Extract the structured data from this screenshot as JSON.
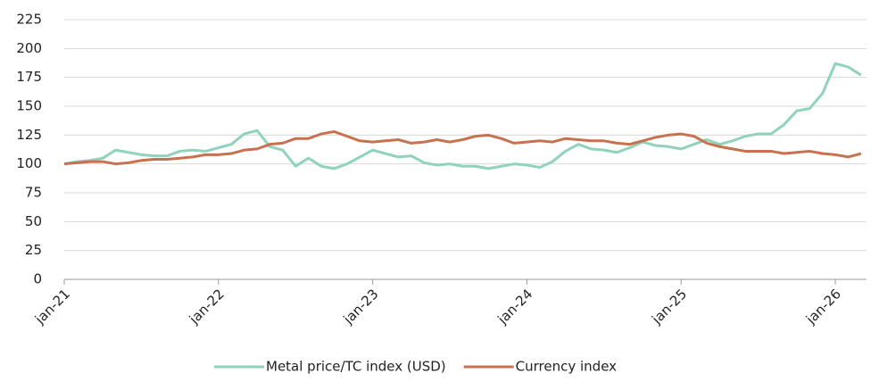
{
  "chart_data": {
    "type": "line",
    "categories": [
      "jan-21",
      null,
      null,
      null,
      null,
      null,
      null,
      null,
      null,
      null,
      null,
      null,
      "jan-22",
      null,
      null,
      null,
      null,
      null,
      null,
      null,
      null,
      null,
      null,
      null,
      "jan-23",
      null,
      null,
      null,
      null,
      null,
      null,
      null,
      null,
      null,
      null,
      null,
      "jan-24",
      null,
      null,
      null,
      null,
      null,
      null,
      null,
      null,
      null,
      null,
      null,
      "jan-25",
      null,
      null,
      null,
      null,
      null,
      null,
      null,
      null,
      null,
      null,
      null,
      "jan-26",
      null,
      null
    ],
    "series": [
      {
        "name": "Metal price/TC index (USD)",
        "color": "#8fd3bb",
        "values": [
          100,
          102,
          103,
          105,
          112,
          110,
          108,
          107,
          107,
          111,
          112,
          111,
          114,
          117,
          126,
          129,
          115,
          112,
          98,
          105,
          98,
          96,
          100,
          106,
          112,
          109,
          106,
          107,
          101,
          99,
          100,
          98,
          98,
          96,
          98,
          100,
          99,
          97,
          102,
          111,
          117,
          113,
          112,
          110,
          114,
          119,
          116,
          115,
          113,
          117,
          121,
          117,
          120,
          124,
          126,
          126,
          134,
          146,
          148,
          161,
          187,
          184,
          177
        ]
      },
      {
        "name": "Currency index",
        "color": "#c8714e",
        "values": [
          100,
          101,
          102,
          102,
          100,
          101,
          103,
          104,
          104,
          105,
          106,
          108,
          108,
          109,
          112,
          113,
          117,
          118,
          122,
          122,
          126,
          128,
          124,
          120,
          119,
          120,
          121,
          118,
          119,
          121,
          119,
          121,
          124,
          125,
          122,
          118,
          119,
          120,
          119,
          122,
          121,
          120,
          120,
          118,
          117,
          120,
          123,
          125,
          126,
          124,
          118,
          115,
          113,
          111,
          111,
          111,
          109,
          110,
          111,
          109,
          108,
          106,
          109
        ]
      }
    ],
    "ylim": [
      0,
      225
    ],
    "yticks": [
      0,
      25,
      50,
      75,
      100,
      125,
      150,
      175,
      200,
      225
    ],
    "grid": true,
    "legend": "bottom"
  }
}
